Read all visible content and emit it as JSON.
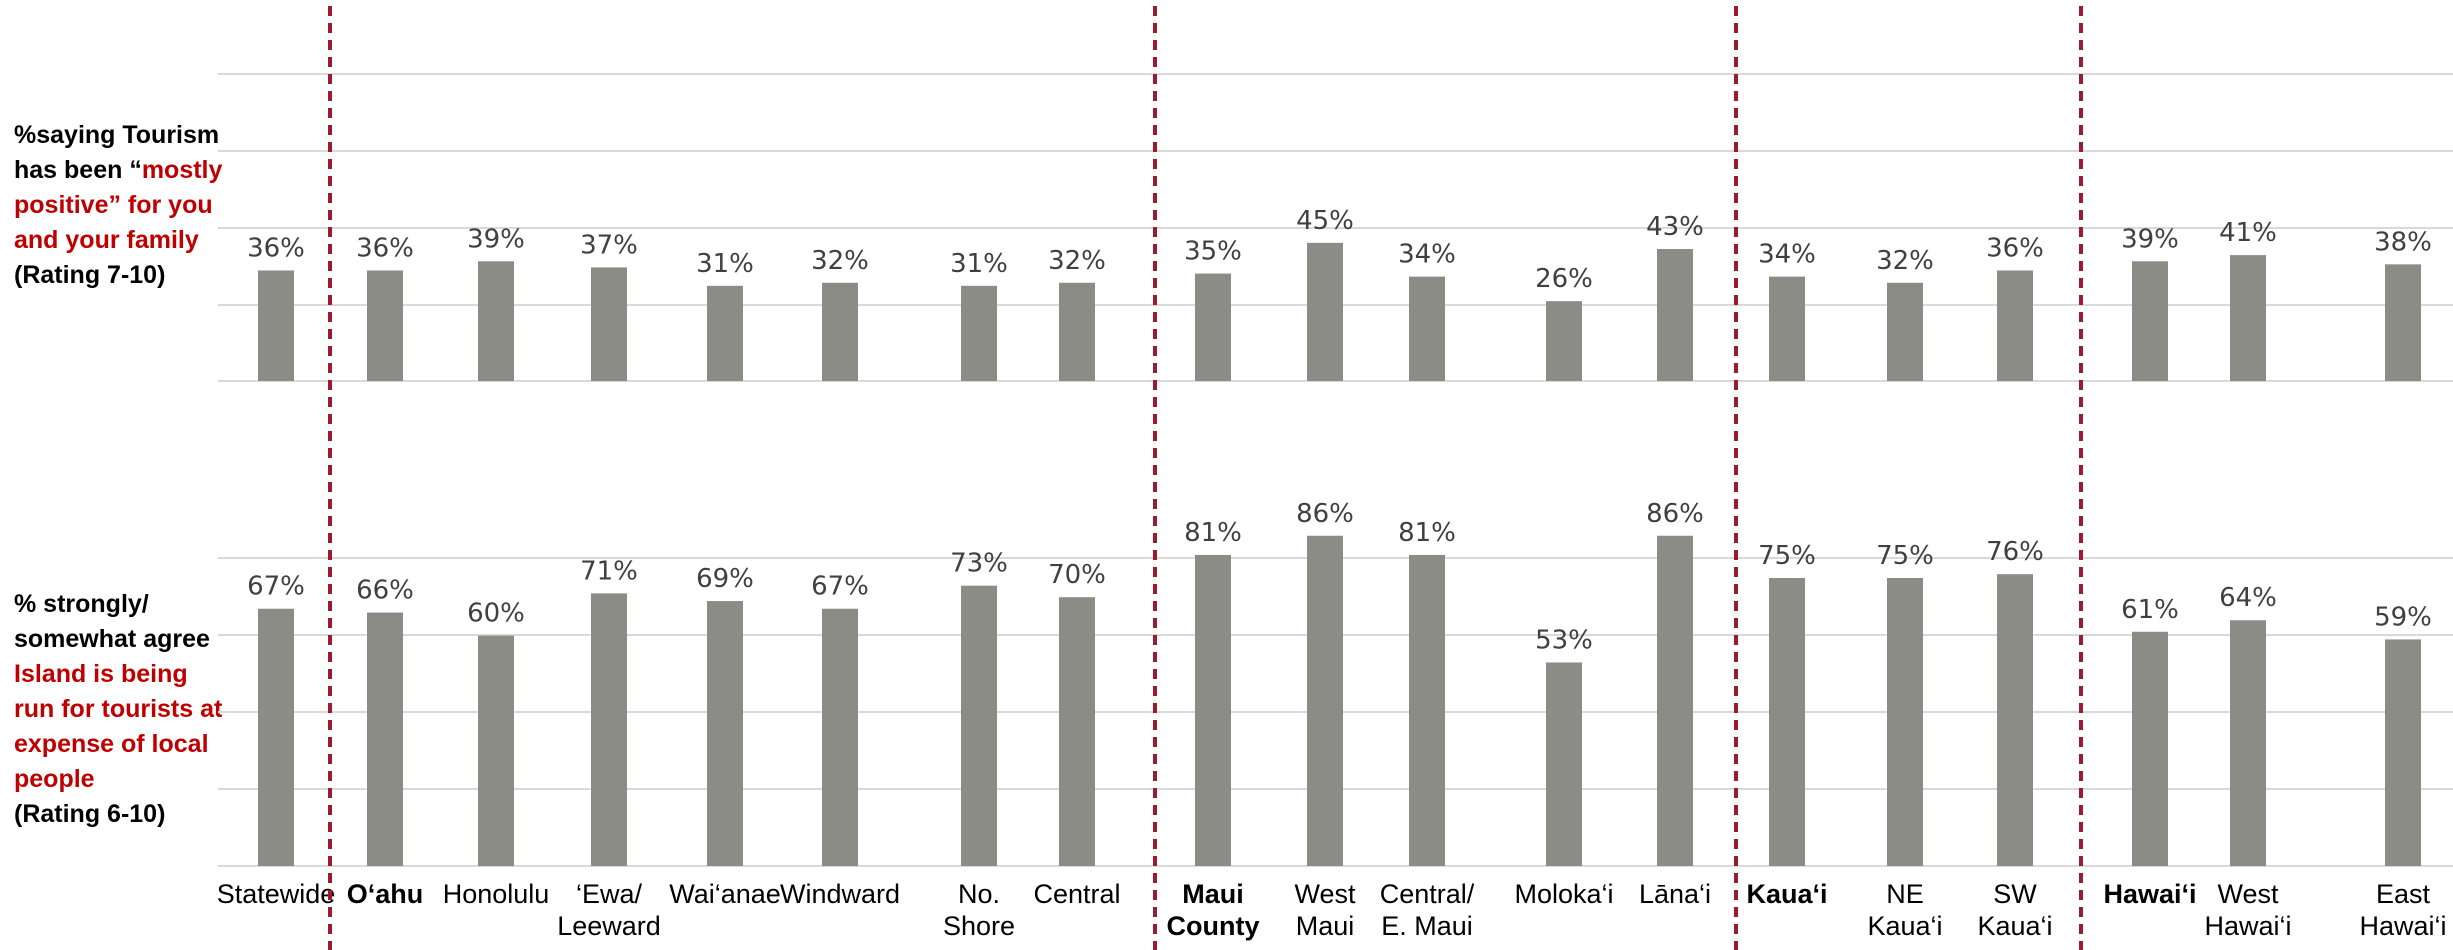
{
  "labels": {
    "top": {
      "part1": "%saying Tourism has been “",
      "highlight": "mostly positive” for you and your family",
      "part2": "(Rating 7-10)"
    },
    "bottom": {
      "part1": "% strongly/ somewhat agree ",
      "highlight": "Island is being run for tourists at expense of local people",
      "part2": "(Rating 6-10)"
    }
  },
  "colors": {
    "bar": "#8C8C87",
    "divider": "#9B1B30",
    "grid": "#D9D9D9",
    "value_label": "#404040",
    "category": "#000000",
    "highlight": "#C00000"
  },
  "chart_data": [
    {
      "type": "bar",
      "categories": [
        "Statewide",
        "O‘ahu",
        "Honolulu",
        "‘Ewa/ Leeward",
        "Wai‘anae",
        "Windward",
        "No. Shore",
        "Central",
        "Maui County",
        "West Maui",
        "Central/ E. Maui",
        "Moloka‘i",
        "Lāna‘i",
        "Kaua‘i",
        "NE Kaua‘i",
        "SW Kaua‘i",
        "Hawai‘i",
        "West Hawai‘i",
        "East Hawai‘i"
      ],
      "values": [
        36,
        36,
        39,
        37,
        31,
        32,
        31,
        32,
        35,
        45,
        34,
        26,
        43,
        34,
        32,
        36,
        39,
        41,
        38
      ],
      "value_labels": [
        "36%",
        "36%",
        "39%",
        "37%",
        "31%",
        "32%",
        "31%",
        "32%",
        "35%",
        "45%",
        "34%",
        "26%",
        "43%",
        "34%",
        "32%",
        "36%",
        "39%",
        "41%",
        "38%"
      ],
      "ylim": [
        0,
        100
      ],
      "grid": true
    },
    {
      "type": "bar",
      "categories": [
        "Statewide",
        "O‘ahu",
        "Honolulu",
        "‘Ewa/ Leeward",
        "Wai‘anae",
        "Windward",
        "No. Shore",
        "Central",
        "Maui County",
        "West Maui",
        "Central/ E. Maui",
        "Moloka‘i",
        "Lāna‘i",
        "Kaua‘i",
        "NE Kaua‘i",
        "SW Kaua‘i",
        "Hawai‘i",
        "West Hawai‘i",
        "East Hawai‘i"
      ],
      "values": [
        67,
        66,
        60,
        71,
        69,
        67,
        73,
        70,
        81,
        86,
        81,
        53,
        86,
        75,
        75,
        76,
        61,
        64,
        59
      ],
      "value_labels": [
        "67%",
        "66%",
        "60%",
        "71%",
        "69%",
        "67%",
        "73%",
        "70%",
        "81%",
        "86%",
        "81%",
        "53%",
        "86%",
        "75%",
        "75%",
        "76%",
        "61%",
        "64%",
        "59%"
      ],
      "ylim": [
        0,
        100
      ],
      "grid": true
    }
  ],
  "x_axis": {
    "categories": [
      {
        "lines": [
          "Statewide"
        ],
        "bold": false
      },
      {
        "lines": [
          "O‘ahu"
        ],
        "bold": true
      },
      {
        "lines": [
          "Honolulu"
        ],
        "bold": false
      },
      {
        "lines": [
          "‘Ewa/",
          "Leeward"
        ],
        "bold": false
      },
      {
        "lines": [
          "Wai‘anae"
        ],
        "bold": false
      },
      {
        "lines": [
          "Windward"
        ],
        "bold": false
      },
      {
        "lines": [
          "No.",
          "Shore"
        ],
        "bold": false
      },
      {
        "lines": [
          "Central"
        ],
        "bold": false
      },
      {
        "lines": [
          "Maui",
          "County"
        ],
        "bold": true
      },
      {
        "lines": [
          "West",
          "Maui"
        ],
        "bold": false
      },
      {
        "lines": [
          "Central/",
          "E. Maui"
        ],
        "bold": false
      },
      {
        "lines": [
          "Moloka‘i"
        ],
        "bold": false
      },
      {
        "lines": [
          "Lāna‘i"
        ],
        "bold": false
      },
      {
        "lines": [
          "Kaua‘i"
        ],
        "bold": true
      },
      {
        "lines": [
          "NE",
          "Kaua‘i"
        ],
        "bold": false
      },
      {
        "lines": [
          "SW",
          "Kaua‘i"
        ],
        "bold": false
      },
      {
        "lines": [
          "Hawai‘i"
        ],
        "bold": true
      },
      {
        "lines": [
          "West",
          "Hawai‘i"
        ],
        "bold": false
      },
      {
        "lines": [
          "East",
          "Hawai‘i"
        ],
        "bold": false
      }
    ]
  },
  "group_dividers_after_category": [
    "Statewide",
    "Central",
    "Lāna‘i",
    "SW Kaua‘i"
  ]
}
